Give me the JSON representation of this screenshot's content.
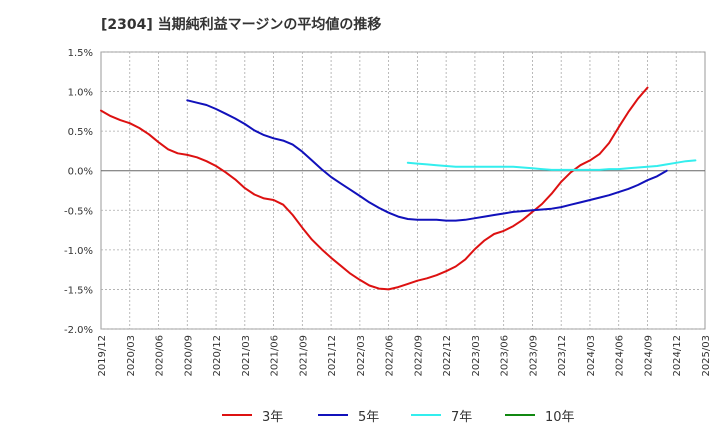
{
  "title": "[2304]  当期純利益マージンの平均値の推移",
  "chart_data": {
    "type": "line",
    "title": "[2304]  当期純利益マージンの平均値の推移",
    "xlabel": "",
    "ylabel": "",
    "ylim": [
      -2.0,
      1.5
    ],
    "y_ticks": [
      "1.5%",
      "1.0%",
      "0.5%",
      "0.0%",
      "-0.5%",
      "-1.0%",
      "-1.5%",
      "-2.0%"
    ],
    "y_tick_values": [
      1.5,
      1.0,
      0.5,
      0.0,
      -0.5,
      -1.0,
      -1.5,
      -2.0
    ],
    "x_ticks": [
      "2019/12",
      "2020/03",
      "2020/06",
      "2020/09",
      "2020/12",
      "2021/03",
      "2021/06",
      "2021/09",
      "2021/12",
      "2022/03",
      "2022/06",
      "2022/09",
      "2022/12",
      "2023/03",
      "2023/06",
      "2023/09",
      "2023/12",
      "2024/03",
      "2024/06",
      "2024/09",
      "2024/12",
      "2025/03"
    ],
    "grid": true,
    "legend_position": "bottom",
    "series": [
      {
        "name": "3年",
        "color": "#dd1111",
        "start": "2019/12",
        "values": [
          0.76,
          0.69,
          0.64,
          0.6,
          0.54,
          0.46,
          0.36,
          0.27,
          0.22,
          0.2,
          0.17,
          0.12,
          0.06,
          -0.02,
          -0.11,
          -0.22,
          -0.3,
          -0.35,
          -0.37,
          -0.43,
          -0.56,
          -0.72,
          -0.87,
          -0.99,
          -1.1,
          -1.2,
          -1.3,
          -1.38,
          -1.45,
          -1.49,
          -1.5,
          -1.47,
          -1.43,
          -1.39,
          -1.36,
          -1.32,
          -1.27,
          -1.21,
          -1.12,
          -0.99,
          -0.88,
          -0.8,
          -0.76,
          -0.7,
          -0.62,
          -0.52,
          -0.42,
          -0.29,
          -0.14,
          -0.02,
          0.07,
          0.13,
          0.21,
          0.35,
          0.55,
          0.74,
          0.91,
          1.05
        ]
      },
      {
        "name": "5年",
        "color": "#1111bb",
        "start": "2020/09",
        "values": [
          0.89,
          0.86,
          0.83,
          0.78,
          0.72,
          0.66,
          0.59,
          0.51,
          0.45,
          0.41,
          0.38,
          0.33,
          0.24,
          0.13,
          0.02,
          -0.08,
          -0.16,
          -0.24,
          -0.32,
          -0.4,
          -0.47,
          -0.53,
          -0.58,
          -0.61,
          -0.62,
          -0.62,
          -0.62,
          -0.63,
          -0.63,
          -0.62,
          -0.6,
          -0.58,
          -0.56,
          -0.54,
          -0.52,
          -0.51,
          -0.5,
          -0.49,
          -0.48,
          -0.46,
          -0.43,
          -0.4,
          -0.37,
          -0.34,
          -0.31,
          -0.27,
          -0.23,
          -0.18,
          -0.12,
          -0.07,
          0.0
        ]
      },
      {
        "name": "7年",
        "color": "#33eeee",
        "start": "2022/08",
        "values": [
          0.1,
          0.09,
          0.08,
          0.07,
          0.06,
          0.05,
          0.05,
          0.05,
          0.05,
          0.05,
          0.05,
          0.05,
          0.04,
          0.03,
          0.02,
          0.01,
          0.01,
          0.01,
          0.01,
          0.01,
          0.01,
          0.02,
          0.02,
          0.03,
          0.04,
          0.05,
          0.06,
          0.08,
          0.1,
          0.12,
          0.13
        ]
      },
      {
        "name": "10年",
        "color": "#118811",
        "start": "",
        "values": []
      }
    ]
  }
}
